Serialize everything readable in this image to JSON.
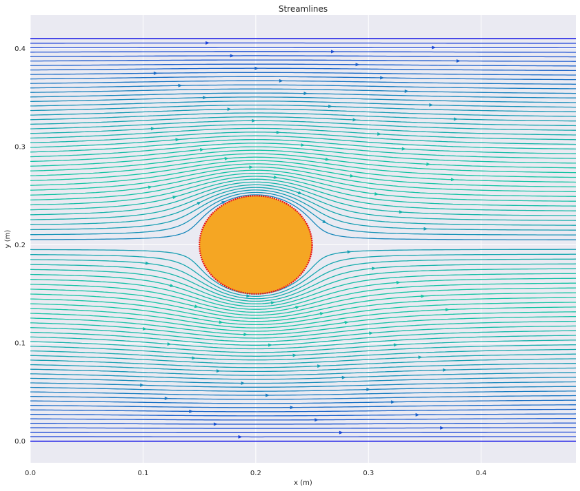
{
  "chart_data": {
    "type": "streamplot",
    "title": "Streamlines",
    "xlabel": "x (m)",
    "ylabel": "y (m)",
    "xlim": [
      0.0,
      0.484
    ],
    "ylim": [
      -0.022,
      0.434
    ],
    "xticks": [
      0.0,
      0.1,
      0.2,
      0.3,
      0.4
    ],
    "yticks": [
      0.0,
      0.1,
      0.2,
      0.3,
      0.4
    ],
    "xtick_labels": [
      "0.0",
      "0.1",
      "0.2",
      "0.3",
      "0.4"
    ],
    "ytick_labels": [
      "0.0",
      "0.1",
      "0.2",
      "0.3",
      "0.4"
    ],
    "grid": true,
    "channel": {
      "y_bottom": 0.0,
      "y_top": 0.41,
      "x_start": 0.0,
      "x_end": 0.484
    },
    "obstacle": {
      "shape": "circle",
      "center_x": 0.2,
      "center_y": 0.2,
      "radius": 0.05,
      "fill": "#f5a623",
      "edge": "#e8101a"
    },
    "colormap": "winter",
    "colors": {
      "slow": "#1a1ae6",
      "fast": "#14e696",
      "background": "#eaeaf2",
      "grid": "#ffffff"
    }
  }
}
